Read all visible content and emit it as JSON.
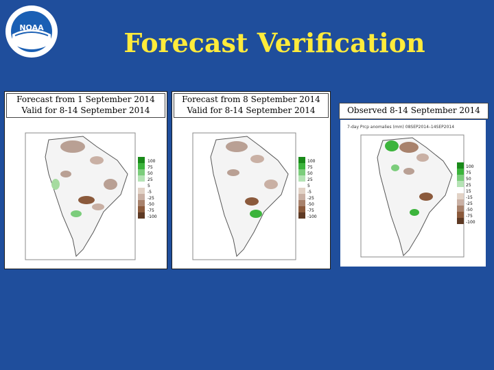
{
  "title": "Forecast Verification",
  "logo_text": "NOAA",
  "panels": [
    {
      "caption_line1": "Forecast from 1 September 2014",
      "caption_line2": "Valid for 8-14 September 2014",
      "legend": [
        "100",
        "75",
        "50",
        "25",
        "5",
        "-5",
        "-25",
        "-50",
        "-75",
        "-100"
      ]
    },
    {
      "caption_line1": "Forecast from 8 September 2014",
      "caption_line2": "Valid for 8-14 September 2014",
      "legend": [
        "100",
        "75",
        "50",
        "25",
        "5",
        "-5",
        "-25",
        "-50",
        "-75",
        "-100"
      ]
    },
    {
      "caption_line1": "Observed 8-14 September 2014",
      "caption_line2": "",
      "map_title": "7-day Prcp anomalies (mm) 08SEP2014–14SEP2014",
      "legend": [
        "100",
        "75",
        "50",
        "25",
        "15",
        "-15",
        "-25",
        "-50",
        "-75",
        "-100"
      ]
    }
  ],
  "colors": {
    "background": "#1f4e9c",
    "title": "#ffeb3b",
    "wet": "#3cb43c",
    "dry": "#8b5a3c"
  }
}
